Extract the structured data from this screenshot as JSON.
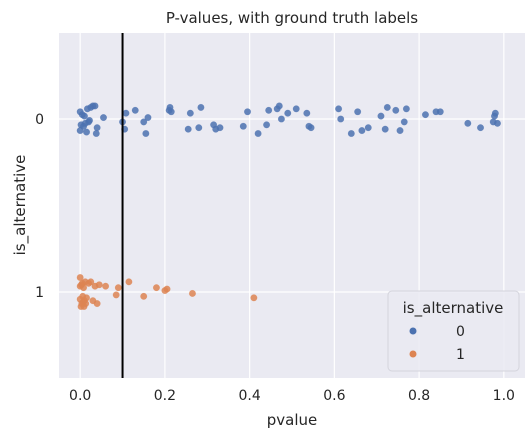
{
  "chart_data": {
    "type": "scatter",
    "title": "P-values, with ground truth labels",
    "xlabel": "pvalue",
    "ylabel": "is_alternative",
    "xlim": [
      -0.05,
      1.05
    ],
    "xticks": [
      0.0,
      0.2,
      0.4,
      0.6,
      0.8,
      1.0
    ],
    "xtick_labels": [
      "0.0",
      "0.2",
      "0.4",
      "0.6",
      "0.8",
      "1.0"
    ],
    "categories": [
      "0",
      "1"
    ],
    "grid": true,
    "vline": {
      "x": 0.1,
      "color": "#000000"
    },
    "legend": {
      "title": "is_alternative",
      "placement": "lower-right",
      "entries": [
        "0",
        "1"
      ]
    },
    "colors": {
      "0": "#4c72b0",
      "1": "#dd8452",
      "background": "#eaeaf2",
      "grid": "#ffffff"
    },
    "series": [
      {
        "name": "0",
        "points": [
          [
            0.0,
            0.08
          ],
          [
            0.0,
            -0.05
          ],
          [
            0.002,
            0.04
          ],
          [
            0.005,
            -0.03
          ],
          [
            0.008,
            0.05
          ],
          [
            0.01,
            -0.02
          ],
          [
            0.012,
            0.03
          ],
          [
            0.015,
            0.09
          ],
          [
            0.017,
            -0.07
          ],
          [
            0.02,
            0.02
          ],
          [
            0.022,
            0.01
          ],
          [
            0.025,
            -0.08
          ],
          [
            0.03,
            -0.09
          ],
          [
            0.035,
            -0.09
          ],
          [
            0.038,
            0.1
          ],
          [
            0.04,
            0.06
          ],
          [
            0.055,
            -0.01
          ],
          [
            0.1,
            0.02
          ],
          [
            0.105,
            0.07
          ],
          [
            0.108,
            -0.04
          ],
          [
            0.13,
            -0.06
          ],
          [
            0.15,
            0.02
          ],
          [
            0.155,
            0.1
          ],
          [
            0.16,
            -0.01
          ],
          [
            0.21,
            -0.06
          ],
          [
            0.212,
            -0.08
          ],
          [
            0.215,
            -0.05
          ],
          [
            0.255,
            0.07
          ],
          [
            0.26,
            -0.04
          ],
          [
            0.28,
            0.06
          ],
          [
            0.285,
            -0.08
          ],
          [
            0.315,
            0.04
          ],
          [
            0.32,
            0.07
          ],
          [
            0.33,
            0.06
          ],
          [
            0.385,
            0.05
          ],
          [
            0.395,
            -0.05
          ],
          [
            0.42,
            0.1
          ],
          [
            0.44,
            0.04
          ],
          [
            0.445,
            -0.06
          ],
          [
            0.465,
            -0.07
          ],
          [
            0.47,
            -0.09
          ],
          [
            0.475,
            0.0
          ],
          [
            0.49,
            -0.04
          ],
          [
            0.51,
            -0.07
          ],
          [
            0.535,
            -0.04
          ],
          [
            0.54,
            0.05
          ],
          [
            0.545,
            0.06
          ],
          [
            0.61,
            -0.07
          ],
          [
            0.615,
            0.0
          ],
          [
            0.64,
            0.1
          ],
          [
            0.655,
            -0.05
          ],
          [
            0.665,
            0.08
          ],
          [
            0.68,
            0.06
          ],
          [
            0.71,
            -0.02
          ],
          [
            0.72,
            0.07
          ],
          [
            0.725,
            -0.08
          ],
          [
            0.745,
            -0.06
          ],
          [
            0.755,
            0.08
          ],
          [
            0.765,
            0.02
          ],
          [
            0.77,
            -0.07
          ],
          [
            0.815,
            -0.03
          ],
          [
            0.84,
            -0.05
          ],
          [
            0.85,
            -0.05
          ],
          [
            0.915,
            0.03
          ],
          [
            0.945,
            0.06
          ],
          [
            0.975,
            0.02
          ],
          [
            0.978,
            -0.02
          ],
          [
            0.98,
            -0.04
          ],
          [
            0.985,
            0.03
          ]
        ]
      },
      {
        "name": "1",
        "points": [
          [
            0.0,
            -0.1
          ],
          [
            0.0,
            0.05
          ],
          [
            0.0,
            -0.04
          ],
          [
            0.002,
            0.1
          ],
          [
            0.003,
            -0.05
          ],
          [
            0.004,
            0.08
          ],
          [
            0.005,
            -0.06
          ],
          [
            0.006,
            0.03
          ],
          [
            0.007,
            0.07
          ],
          [
            0.008,
            -0.03
          ],
          [
            0.009,
            0.1
          ],
          [
            0.01,
            0.06
          ],
          [
            0.012,
            -0.07
          ],
          [
            0.013,
            0.08
          ],
          [
            0.015,
            0.04
          ],
          [
            0.02,
            -0.06
          ],
          [
            0.025,
            -0.07
          ],
          [
            0.03,
            0.06
          ],
          [
            0.035,
            -0.04
          ],
          [
            0.04,
            0.08
          ],
          [
            0.045,
            -0.05
          ],
          [
            0.06,
            -0.04
          ],
          [
            0.085,
            0.02
          ],
          [
            0.09,
            -0.03
          ],
          [
            0.115,
            -0.07
          ],
          [
            0.15,
            0.03
          ],
          [
            0.18,
            -0.03
          ],
          [
            0.2,
            -0.01
          ],
          [
            0.205,
            -0.02
          ],
          [
            0.265,
            0.01
          ],
          [
            0.41,
            0.04
          ]
        ]
      }
    ]
  }
}
